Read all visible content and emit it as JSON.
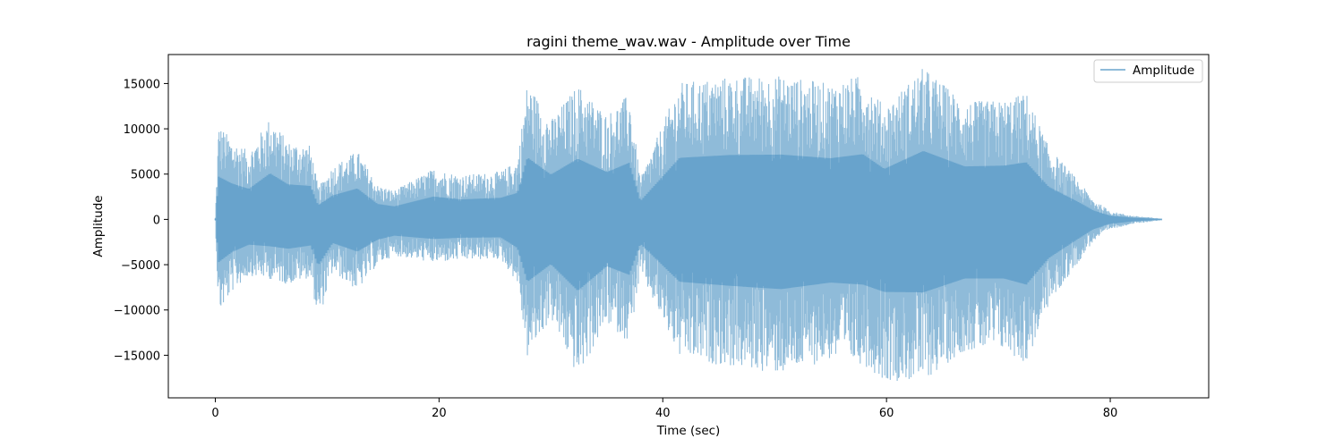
{
  "chart_data": {
    "type": "line",
    "title": "ragini theme_wav.wav - Amplitude over Time",
    "xlabel": "Time (sec)",
    "ylabel": "Amplitude",
    "xlim": [
      -4.2,
      88.8
    ],
    "ylim": [
      -19700,
      18200
    ],
    "xticks": [
      0,
      20,
      40,
      60,
      80
    ],
    "xtick_labels": [
      "0",
      "20",
      "40",
      "60",
      "80"
    ],
    "yticks": [
      -15000,
      -10000,
      -5000,
      0,
      5000,
      10000,
      15000
    ],
    "ytick_labels": [
      "−15000",
      "−10000",
      "−5000",
      "0",
      "5000",
      "10000",
      "15000"
    ],
    "grid": false,
    "legend_position": "top-right",
    "line_color": "#1f77b4",
    "line_alpha": 0.5,
    "series": [
      {
        "name": "Amplitude",
        "duration_sec": 84.6,
        "envelope_points": [
          {
            "t": 0.0,
            "max": 200,
            "min": -200
          },
          {
            "t": 0.3,
            "max": 10500,
            "min": -10500
          },
          {
            "t": 1.5,
            "max": 8800,
            "min": -8000
          },
          {
            "t": 3.0,
            "max": 7500,
            "min": -6200
          },
          {
            "t": 4.9,
            "max": 11300,
            "min": -6600
          },
          {
            "t": 6.5,
            "max": 8600,
            "min": -7200
          },
          {
            "t": 8.5,
            "max": 8200,
            "min": -6400
          },
          {
            "t": 9.2,
            "max": 3500,
            "min": -11300
          },
          {
            "t": 10.5,
            "max": 5900,
            "min": -5800
          },
          {
            "t": 12.7,
            "max": 7600,
            "min": -7900
          },
          {
            "t": 14.5,
            "max": 3800,
            "min": -5000
          },
          {
            "t": 16.0,
            "max": 3200,
            "min": -4000
          },
          {
            "t": 19.5,
            "max": 5600,
            "min": -4800
          },
          {
            "t": 22.0,
            "max": 4900,
            "min": -4500
          },
          {
            "t": 25.5,
            "max": 5300,
            "min": -4400
          },
          {
            "t": 27.0,
            "max": 6500,
            "min": -7000
          },
          {
            "t": 27.9,
            "max": 15200,
            "min": -15300
          },
          {
            "t": 30.0,
            "max": 11000,
            "min": -11000
          },
          {
            "t": 32.4,
            "max": 14900,
            "min": -17500
          },
          {
            "t": 35.0,
            "max": 11600,
            "min": -11500
          },
          {
            "t": 37.0,
            "max": 13900,
            "min": -13600
          },
          {
            "t": 38.0,
            "max": 4500,
            "min": -6000
          },
          {
            "t": 41.5,
            "max": 15100,
            "min": -15300
          },
          {
            "t": 46.0,
            "max": 15800,
            "min": -16300
          },
          {
            "t": 50.6,
            "max": 15900,
            "min": -17100
          },
          {
            "t": 55.0,
            "max": 15000,
            "min": -15500
          },
          {
            "t": 57.9,
            "max": 16000,
            "min": -16000
          },
          {
            "t": 59.8,
            "max": 12400,
            "min": -17800
          },
          {
            "t": 63.3,
            "max": 16800,
            "min": -17900
          },
          {
            "t": 67.0,
            "max": 13000,
            "min": -14500
          },
          {
            "t": 70.5,
            "max": 13200,
            "min": -14500
          },
          {
            "t": 72.5,
            "max": 14000,
            "min": -16000
          },
          {
            "t": 74.5,
            "max": 8000,
            "min": -9500
          },
          {
            "t": 77.0,
            "max": 4500,
            "min": -5000
          },
          {
            "t": 78.5,
            "max": 2200,
            "min": -2400
          },
          {
            "t": 80.0,
            "max": 900,
            "min": -1100
          },
          {
            "t": 82.0,
            "max": 400,
            "min": -500
          },
          {
            "t": 84.6,
            "max": 100,
            "min": -100
          }
        ]
      }
    ]
  }
}
